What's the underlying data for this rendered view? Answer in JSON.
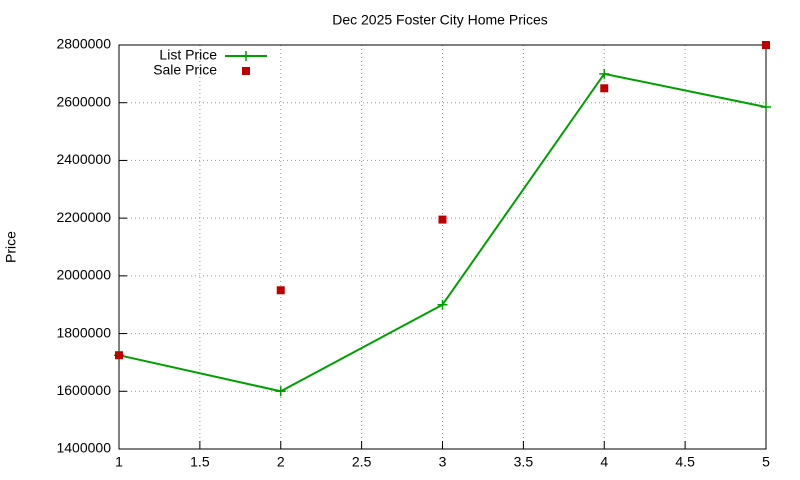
{
  "chart_data": {
    "type": "line",
    "title": "Dec 2025 Foster City Home Prices",
    "y_label": "Price",
    "x": [
      1,
      2,
      3,
      4,
      5
    ],
    "series": [
      {
        "name": "List Price",
        "color": "#00a000",
        "mode": "lines+markers",
        "values": [
          1725000,
          1600000,
          1900000,
          2700000,
          2585000
        ]
      },
      {
        "name": "Sale Price",
        "color": "#c00000",
        "mode": "markers",
        "values": [
          1725000,
          1950000,
          2195000,
          2650000,
          2800000
        ]
      }
    ],
    "xlim": [
      1,
      5
    ],
    "xticks": [
      1,
      1.5,
      2,
      2.5,
      3,
      3.5,
      4,
      4.5,
      5
    ],
    "ylim": [
      1400000,
      2800000
    ],
    "yticks": [
      1400000,
      1600000,
      1800000,
      2000000,
      2200000,
      2400000,
      2600000,
      2800000
    ],
    "grid": true,
    "legend": "top-left"
  }
}
